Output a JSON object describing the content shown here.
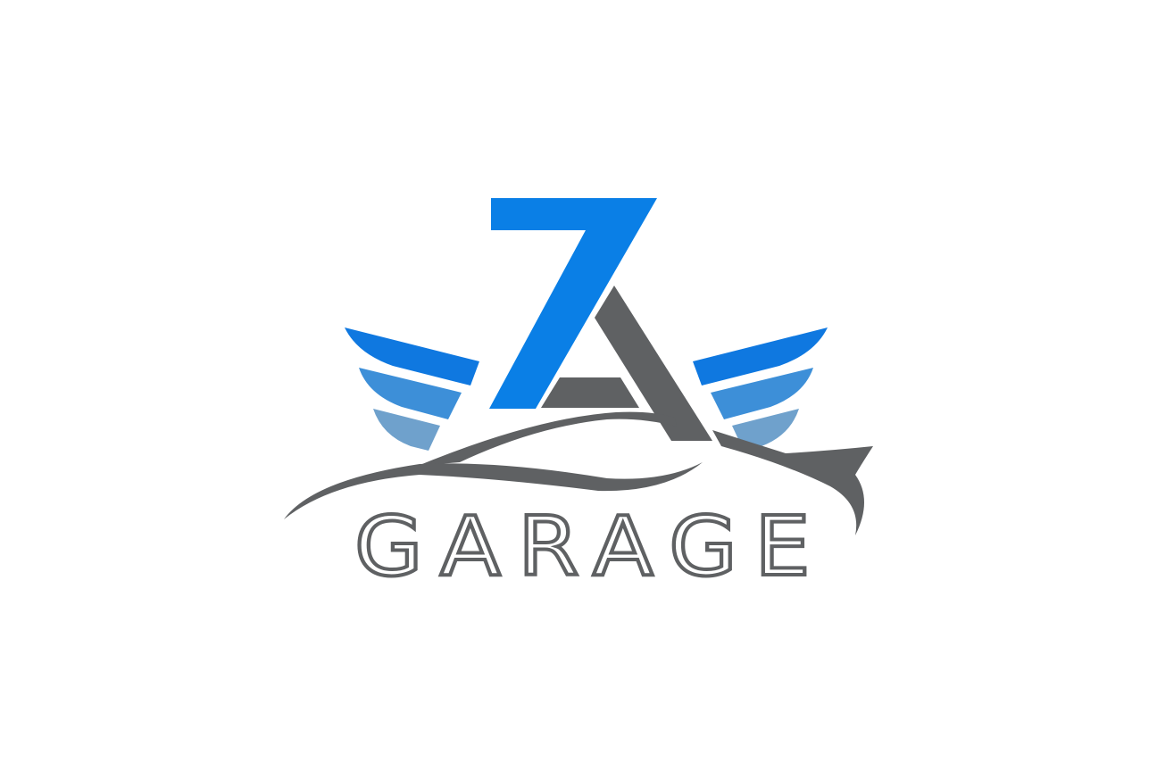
{
  "logo": {
    "wordmark": "GARAGE",
    "monogram": "ZA",
    "colors": {
      "background": "#ffffff",
      "z_blue": "#0a7fe6",
      "wing_dark": "#0f78e0",
      "wing_mid": "#3d8fd8",
      "wing_light": "#6fa1cc",
      "gray": "#5f6163"
    },
    "icons": [
      "wings-icon",
      "car-silhouette-icon"
    ]
  }
}
